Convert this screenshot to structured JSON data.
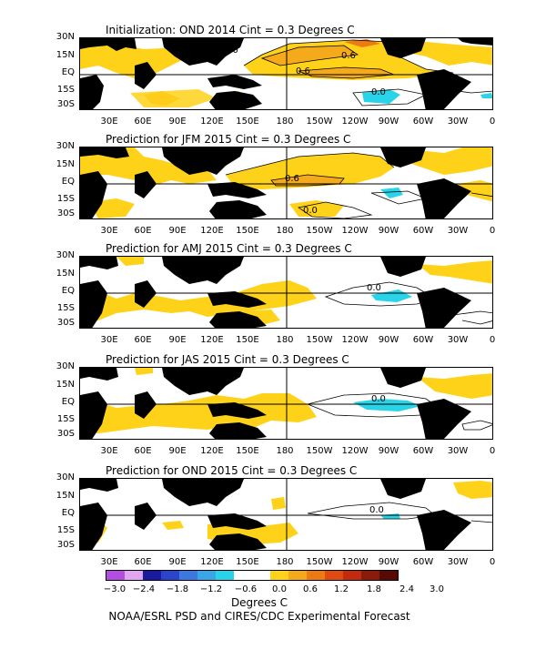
{
  "panels": [
    {
      "title": "Initialization: OND 2014   Cint = 0.3 Degrees C",
      "contour_labels": [
        "0.6",
        "0.6",
        "0.0",
        "0.0"
      ]
    },
    {
      "title": "Prediction for JFM 2015   Cint = 0.3 Degrees C",
      "contour_labels": [
        "0.6",
        "0.0"
      ]
    },
    {
      "title": "Prediction for AMJ 2015   Cint = 0.3 Degrees C",
      "contour_labels": [
        "0.0"
      ]
    },
    {
      "title": "Prediction for JAS 2015   Cint = 0.3 Degrees C",
      "contour_labels": [
        "0.0"
      ]
    },
    {
      "title": "Prediction for OND 2015   Cint = 0.3 Degrees C",
      "contour_labels": [
        "0.0"
      ]
    }
  ],
  "lat_labels": [
    "30N",
    "15N",
    "EQ",
    "15S",
    "30S"
  ],
  "lon_labels": [
    "30E",
    "60E",
    "90E",
    "120E",
    "150E",
    "180",
    "150W",
    "120W",
    "90W",
    "60W",
    "30W",
    "0"
  ],
  "legend": {
    "colors": [
      "#b34ce0",
      "#e0a6f0",
      "#1a1aa0",
      "#2a44cc",
      "#3c78e0",
      "#3aa6e8",
      "#2ad4e8",
      "#ffffff",
      "#ffffff",
      "#ffd21a",
      "#f4aa1a",
      "#ee7a14",
      "#e04a10",
      "#c42a0e",
      "#8a1a0a",
      "#5a0a04"
    ],
    "ticks": [
      "−3.0",
      "−2.4",
      "−1.8",
      "−1.2",
      "−0.6",
      "0.0",
      "0.6",
      "1.2",
      "1.8",
      "2.4",
      "3.0"
    ],
    "units": "Degrees C"
  },
  "credit": "NOAA/ESRL PSD and CIRES/CDC Experimental Forecast",
  "colors": {
    "warm1": "#ffd21a",
    "warm2": "#f4aa1a",
    "cool1": "#2ad4e8",
    "land": "#000000"
  }
}
